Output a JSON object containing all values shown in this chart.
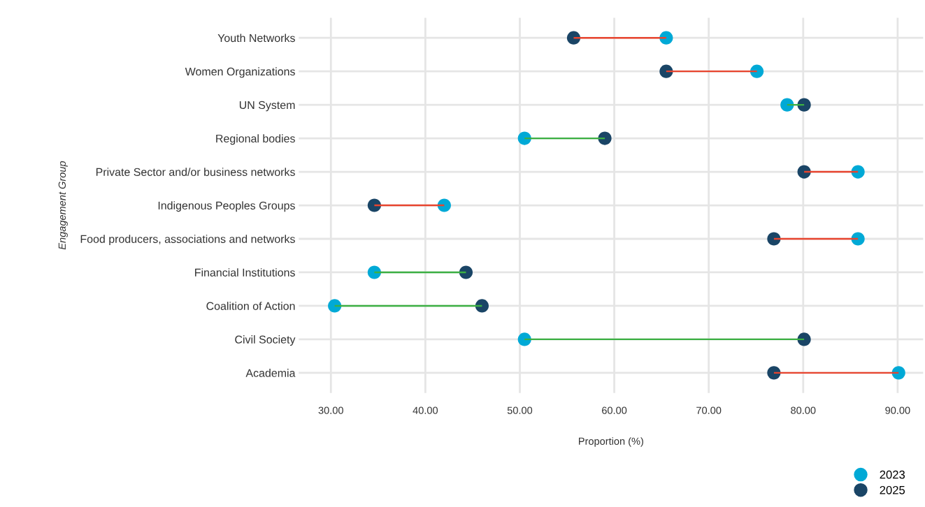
{
  "chart_data": {
    "type": "scatter",
    "ylabel": "Engagement Group",
    "xlabel": "Proportion (%)",
    "categories": [
      "Youth Networks",
      "Women Organizations",
      "UN System",
      "Regional bodies",
      "Private Sector and/or business networks",
      "Indigenous Peoples Groups",
      "Food producers, associations and networks",
      "Financial Institutions",
      "Coalition of Action",
      "Civil Society",
      "Academia"
    ],
    "orientation": "horizontal",
    "xlim": [
      26.6,
      92.7
    ],
    "xticks": [
      {
        "value": 30,
        "label": "30.00"
      },
      {
        "value": 40,
        "label": "40.00"
      },
      {
        "value": 50,
        "label": "50.00"
      },
      {
        "value": 60,
        "label": "60.00"
      },
      {
        "value": 70,
        "label": "70.00"
      },
      {
        "value": 80,
        "label": "80.00"
      },
      {
        "value": 90,
        "label": "90.00"
      }
    ],
    "grid": true,
    "legend": "bottom right",
    "marker": "circle",
    "series": [
      {
        "type": "bar",
        "base": [
          65.5,
          75.1,
          78.3,
          50.5,
          85.8,
          42.0,
          85.8,
          34.6,
          30.4,
          50.5,
          90.1
        ],
        "values": [
          -9.8,
          -9.6,
          1.8,
          8.5,
          -5.7,
          -7.4,
          -8.9,
          9.7,
          15.6,
          29.6,
          -13.2
        ],
        "colors": [
          "#e8442e",
          "#e8442e",
          "#3cb043",
          "#3cb043",
          "#e8442e",
          "#e8442e",
          "#e8442e",
          "#3cb043",
          "#3cb043",
          "#3cb043",
          "#e8442e"
        ]
      },
      {
        "name": "2023",
        "color": "#00a9d6",
        "values": [
          65.5,
          75.1,
          78.3,
          50.5,
          85.8,
          42.0,
          85.8,
          34.6,
          30.4,
          50.5,
          90.1
        ]
      },
      {
        "name": "2025",
        "color": "#1a4566",
        "values": [
          55.7,
          65.5,
          80.1,
          59.0,
          80.1,
          34.6,
          76.9,
          44.3,
          46.0,
          80.1,
          76.9
        ]
      }
    ]
  }
}
